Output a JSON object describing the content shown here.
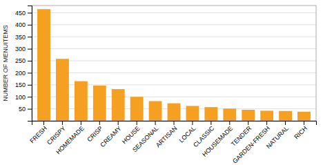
{
  "chart_data": {
    "type": "bar",
    "categories": [
      "FRESH",
      "CRISPY",
      "HOMEMADE",
      "CRISP",
      "CREAMY",
      "HOUSE",
      "SEASONAL",
      "ARTISAN",
      "LOCAL",
      "CLASSIC",
      "HOUSEMADE",
      "TENDER",
      "GARDEN-FRESH",
      "NATURAL",
      "RICH"
    ],
    "values": [
      465,
      258,
      165,
      147,
      132,
      100,
      82,
      73,
      62,
      57,
      51,
      46,
      42,
      41,
      38
    ],
    "color": "#F5A020",
    "ylabel": "NUMBER OF MENUITEMS",
    "ylim": [
      0,
      480
    ],
    "yticks": [
      50,
      100,
      150,
      200,
      250,
      300,
      350,
      400,
      450
    ],
    "grid": true
  }
}
